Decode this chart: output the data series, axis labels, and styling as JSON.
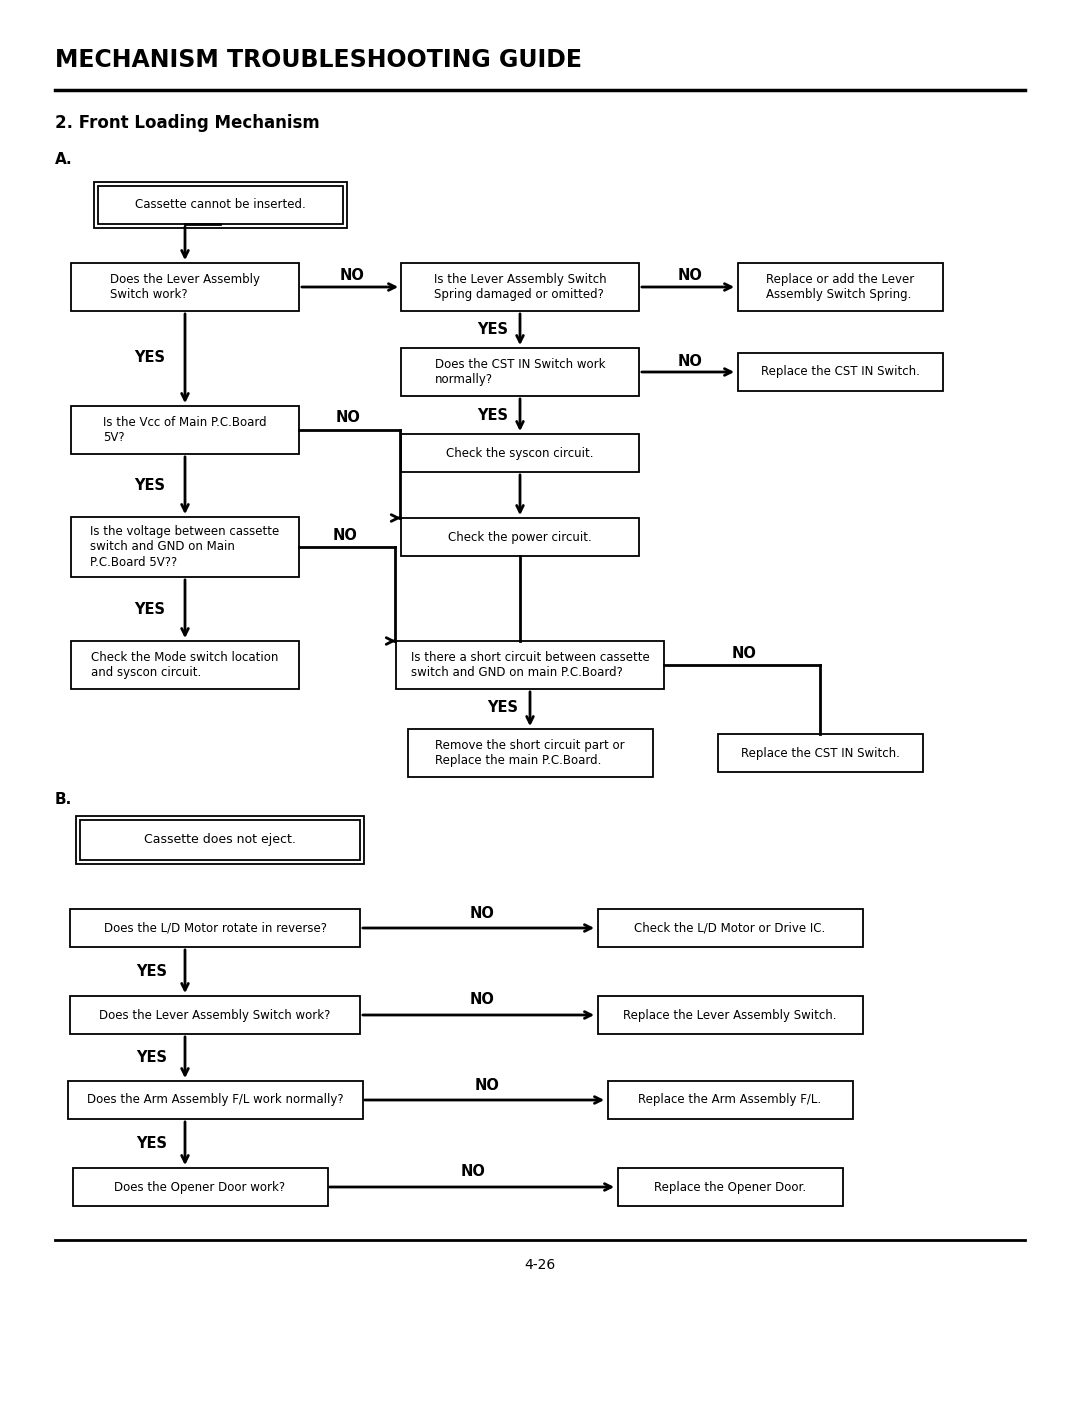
{
  "title": "MECHANISM TROUBLESHOOTING GUIDE",
  "subtitle": "2. Front Loading Mechanism",
  "bg_color": "#ffffff",
  "text_color": "#000000",
  "section_a_label": "A.",
  "section_b_label": "B.",
  "page_number": "4-26"
}
